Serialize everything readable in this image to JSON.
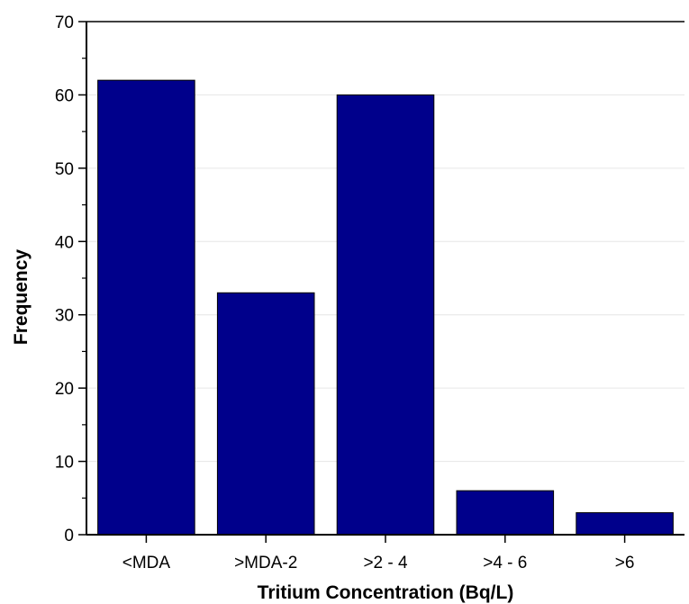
{
  "chart_data": {
    "type": "bar",
    "title": "",
    "xlabel": "Tritium Concentration (Bq/L)",
    "ylabel": "Frequency",
    "categories": [
      "<MDA",
      ">MDA-2",
      ">2 - 4",
      ">4 - 6",
      ">6"
    ],
    "values": [
      62,
      33,
      60,
      6,
      3
    ],
    "ylim": [
      0,
      70
    ],
    "yticks": [
      0,
      10,
      20,
      30,
      40,
      50,
      60,
      70
    ],
    "grid": "horizontal, light",
    "legend": "none",
    "bar_color": "#00008B"
  }
}
